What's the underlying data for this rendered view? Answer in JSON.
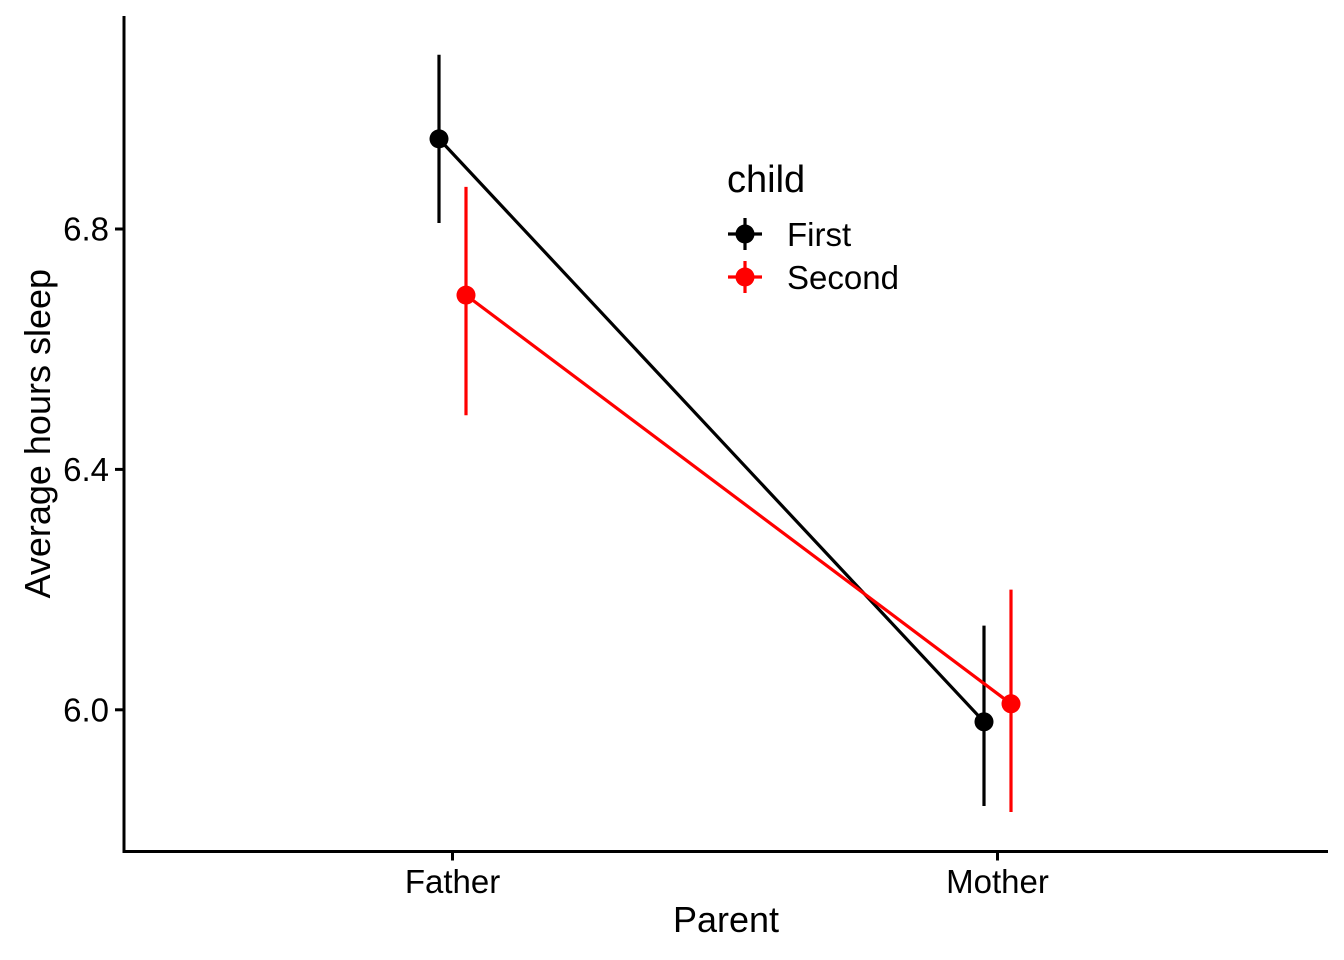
{
  "figure": {
    "background_color": "#ffffff",
    "text_color": "#000000"
  },
  "chart_data": {
    "type": "pointrange-line",
    "title": "",
    "xlabel": "Parent",
    "ylabel": "Average hours sleep",
    "categories": [
      "Father",
      "Mother"
    ],
    "series": [
      {
        "name": "First",
        "color": "#000000",
        "means": [
          6.95,
          5.98
        ],
        "ci_low": [
          6.81,
          5.84
        ],
        "ci_high": [
          7.09,
          6.14
        ]
      },
      {
        "name": "Second",
        "color": "#ff0000",
        "means": [
          6.69,
          6.01
        ],
        "ci_low": [
          6.49,
          5.83
        ],
        "ci_high": [
          6.87,
          6.2
        ]
      }
    ],
    "y_ticks": [
      6.0,
      6.4,
      6.8
    ],
    "y_tick_labels": [
      "6.0",
      "6.4",
      "6.8"
    ],
    "ylim": [
      5.76,
      7.16
    ],
    "grid": false,
    "axis_style": "classic-left-bottom-only",
    "legend": {
      "title": "child",
      "position": "inside-upper-middle-right",
      "entries": [
        {
          "label": "First",
          "color": "#000000",
          "key": "pointrange-cross"
        },
        {
          "label": "Second",
          "color": "#ff0000",
          "key": "pointrange-cross"
        }
      ]
    }
  }
}
